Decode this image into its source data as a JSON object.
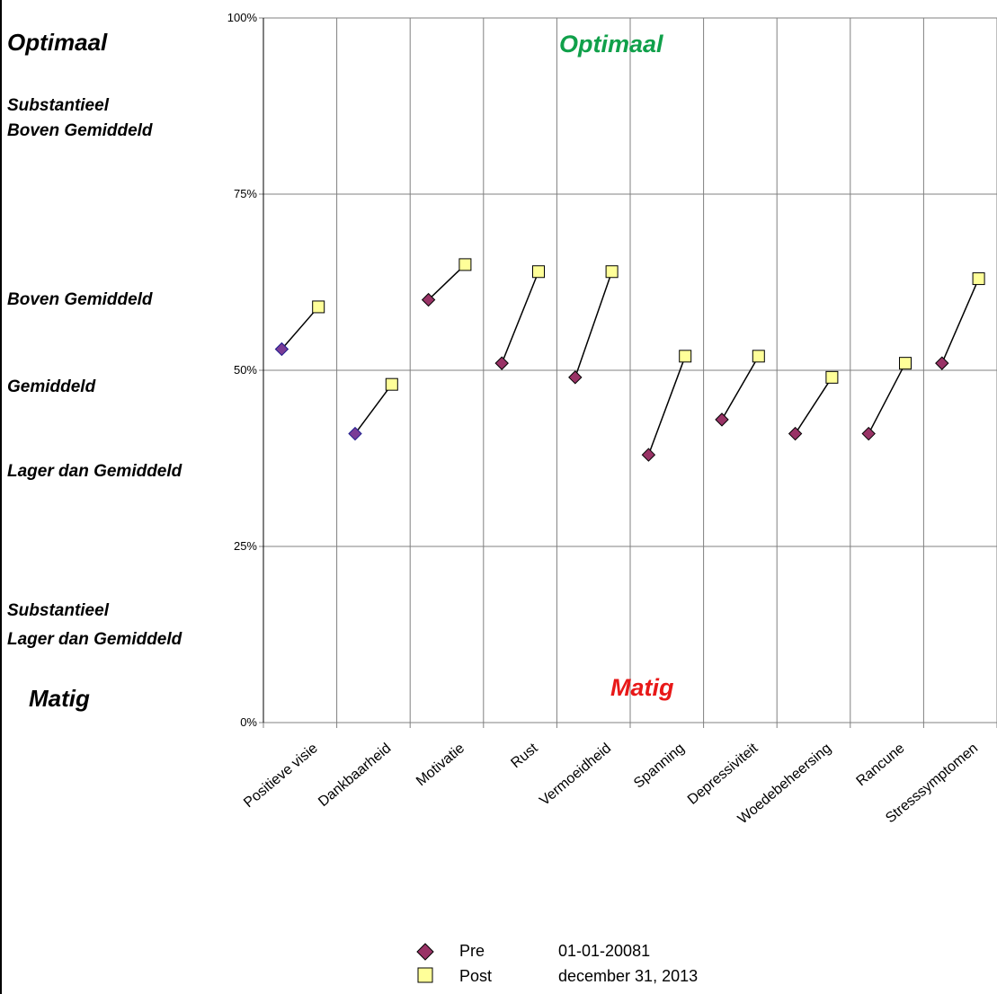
{
  "band_labels": {
    "optimaal": "Optimaal",
    "subst_boven_1": "Substantieel",
    "subst_boven_2": "Boven Gemiddeld",
    "boven": "Boven Gemiddeld",
    "gemiddeld": "Gemiddeld",
    "lager": "Lager dan Gemiddeld",
    "subst_lager_1": "Substantieel",
    "subst_lager_2": "Lager dan Gemiddeld",
    "matig": "Matig"
  },
  "zones": {
    "top": "Optimaal",
    "bottom": "Matig"
  },
  "colors": {
    "pre": "#993366",
    "pre_first": "#7a3c96",
    "post": "#ffff99",
    "optimaal": "#10a04a",
    "matig": "#e81818",
    "grid": "#808080"
  },
  "legend": {
    "pre_label": "Pre",
    "pre_date": "01-01-20081",
    "post_label": "Post",
    "post_date": "december 31, 2013"
  },
  "chart_data": {
    "type": "scatter",
    "categories": [
      "Positieve visie",
      "Dankbaarheid",
      "Motivatie",
      "Rust",
      "Vermoeidheid",
      "Spanning",
      "Depressiviteit",
      "Woedebeheersing",
      "Rancune",
      "Stresssymptomen"
    ],
    "series": [
      {
        "name": "Pre",
        "values": [
          53,
          41,
          60,
          51,
          49,
          38,
          43,
          41,
          41,
          51
        ]
      },
      {
        "name": "Post",
        "values": [
          59,
          48,
          65,
          64,
          64,
          52,
          52,
          49,
          51,
          63
        ]
      }
    ],
    "ylim": [
      0,
      100
    ],
    "yticks": [
      "0%",
      "25%",
      "50%",
      "75%",
      "100%"
    ],
    "grid": true,
    "legend_position": "bottom"
  }
}
